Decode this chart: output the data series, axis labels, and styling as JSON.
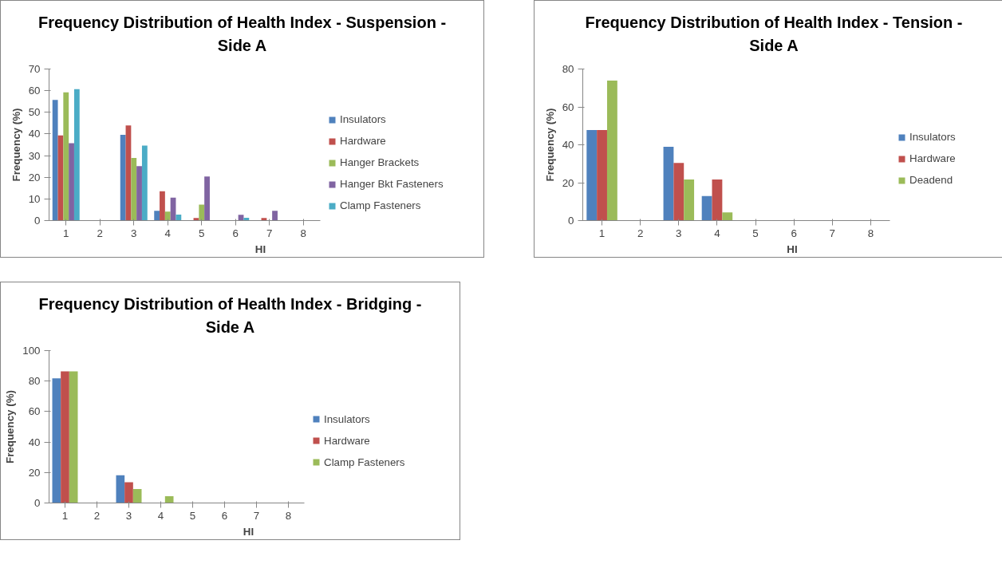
{
  "chart_data": [
    {
      "type": "bar",
      "title": "Frequency Distribution of Health Index - Suspension - Side A",
      "xlabel": "HI",
      "ylabel": "Frequency (%)",
      "categories": [
        "1",
        "2",
        "3",
        "4",
        "5",
        "6",
        "7",
        "8"
      ],
      "ylim": [
        0,
        70
      ],
      "yticks": [
        0,
        10,
        20,
        30,
        40,
        50,
        60,
        70
      ],
      "grid": false,
      "legend": "right",
      "series": [
        {
          "name": "Insulators",
          "color": "#4f81bd",
          "values": [
            55.7,
            0,
            39.6,
            4.5,
            0,
            0,
            0,
            0
          ]
        },
        {
          "name": "Hardware",
          "color": "#c0504d",
          "values": [
            39.3,
            0,
            43.9,
            13.5,
            1.2,
            0,
            1.2,
            0
          ]
        },
        {
          "name": "Hanger Brackets",
          "color": "#9bbb59",
          "values": [
            59.2,
            0,
            28.9,
            4.1,
            7.4,
            0,
            0,
            0
          ]
        },
        {
          "name": "Hanger Bkt Fasteners",
          "color": "#8064a2",
          "values": [
            35.7,
            0,
            25.1,
            10.6,
            20.4,
            2.7,
            4.5,
            0
          ]
        },
        {
          "name": "Clamp Fasteners",
          "color": "#4bacc6",
          "values": [
            60.7,
            0,
            34.6,
            2.8,
            0,
            1.3,
            0,
            0
          ]
        }
      ]
    },
    {
      "type": "bar",
      "title": "Frequency Distribution of Health Index - Tension - Side A",
      "xlabel": "HI",
      "ylabel": "Frequency (%)",
      "categories": [
        "1",
        "2",
        "3",
        "4",
        "5",
        "6",
        "7",
        "8"
      ],
      "ylim": [
        0,
        80
      ],
      "yticks": [
        0,
        20,
        40,
        60,
        80
      ],
      "grid": false,
      "legend": "right",
      "series": [
        {
          "name": "Insulators",
          "color": "#4f81bd",
          "values": [
            47.8,
            0,
            39,
            13,
            0,
            0,
            0,
            0
          ]
        },
        {
          "name": "Hardware",
          "color": "#c0504d",
          "values": [
            47.8,
            0,
            30.4,
            21.7,
            0,
            0,
            0,
            0
          ]
        },
        {
          "name": "Deadend",
          "color": "#9bbb59",
          "values": [
            73.9,
            0,
            21.7,
            4.3,
            0,
            0,
            0,
            0
          ]
        }
      ]
    },
    {
      "type": "bar",
      "title": "Frequency Distribution of Health Index - Bridging - Side A",
      "xlabel": "HI",
      "ylabel": "Frequency (%)",
      "categories": [
        "1",
        "2",
        "3",
        "4",
        "5",
        "6",
        "7",
        "8"
      ],
      "ylim": [
        0,
        100
      ],
      "yticks": [
        0,
        20,
        40,
        60,
        80,
        100
      ],
      "grid": false,
      "legend": "right",
      "series": [
        {
          "name": "Insulators",
          "color": "#4f81bd",
          "values": [
            81.8,
            0,
            18.2,
            0,
            0,
            0,
            0,
            0
          ]
        },
        {
          "name": "Hardware",
          "color": "#c0504d",
          "values": [
            86.4,
            0,
            13.6,
            0,
            0,
            0,
            0,
            0
          ]
        },
        {
          "name": "Clamp Fasteners",
          "color": "#9bbb59",
          "values": [
            86.4,
            0,
            9.1,
            4.5,
            0,
            0,
            0,
            0
          ]
        }
      ]
    }
  ]
}
